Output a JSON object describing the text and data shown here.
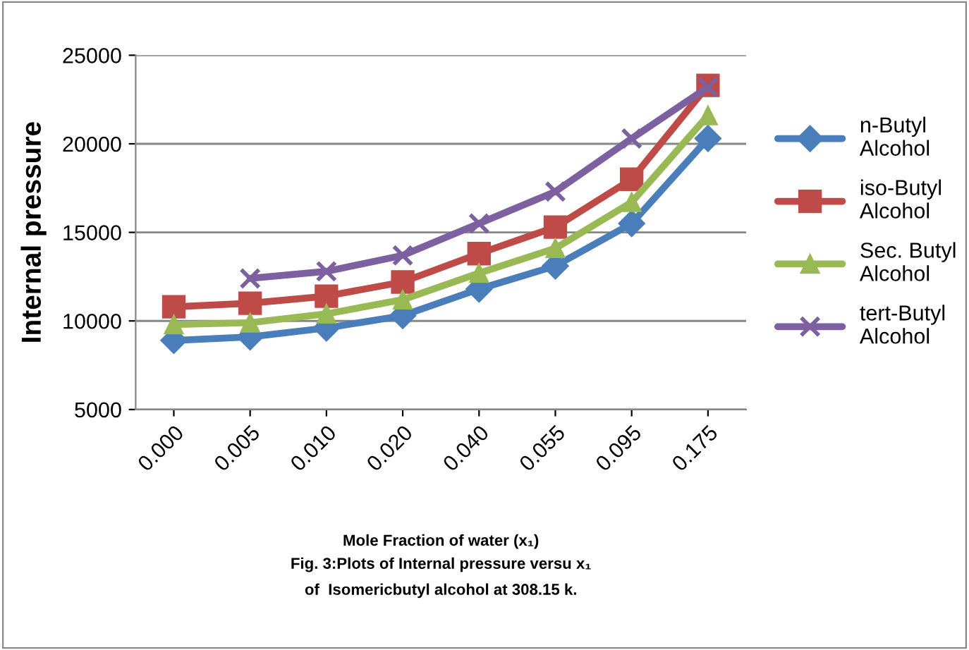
{
  "chart_data": {
    "type": "line",
    "ylabel": "Internal pressure",
    "xlabel": "Mole Fraction of water (x₁)",
    "annotations": [
      "Fig. 3:Plots of Internal pressure versu x₁",
      "of  Isomericbutyl alcohol at 308.15 k."
    ],
    "categories": [
      "0.000",
      "0.005",
      "0.010",
      "0.020",
      "0.040",
      "0.055",
      "0.095",
      "0.175"
    ],
    "series": [
      {
        "name": "n-Butyl\nAlcohol",
        "color": "#4a7ebb",
        "marker": "diamond",
        "values": [
          8900,
          9100,
          9600,
          10300,
          11800,
          13100,
          15500,
          20300
        ]
      },
      {
        "name": "iso-Butyl\nAlcohol",
        "color": "#be4b48",
        "marker": "square",
        "values": [
          10800,
          11000,
          11400,
          12200,
          13800,
          15300,
          18000,
          23300
        ]
      },
      {
        "name": "Sec. Butyl\nAlcohol",
        "color": "#98b954",
        "marker": "triangle",
        "values": [
          9800,
          9900,
          10400,
          11200,
          12700,
          14100,
          16700,
          21600
        ]
      },
      {
        "name": "tert-Butyl\nAlcohol",
        "color": "#7d60a0",
        "marker": "cross",
        "values": [
          null,
          12400,
          12800,
          13700,
          15500,
          17300,
          20300,
          23200
        ]
      }
    ],
    "ylim": [
      5000,
      25000
    ],
    "yticks": [
      5000,
      10000,
      15000,
      20000,
      25000
    ],
    "grid": "y",
    "legend": "right"
  }
}
